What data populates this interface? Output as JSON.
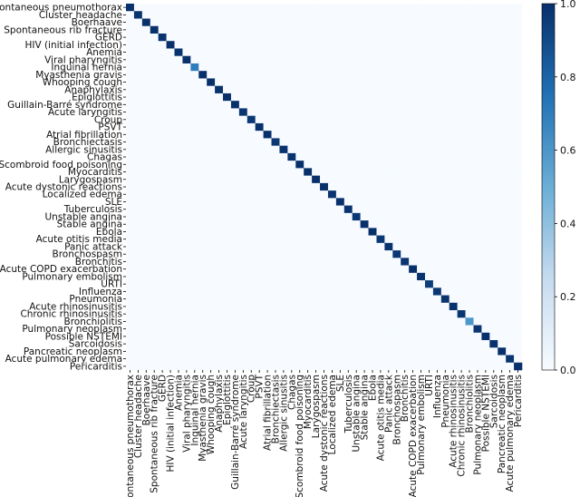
{
  "chart_data": {
    "type": "heatmap",
    "title": "",
    "xlabel": "",
    "ylabel": "",
    "categories": [
      "Spontaneous pneumothorax",
      "Cluster headache",
      "Boerhaave",
      "Spontaneous rib fracture",
      "GERD",
      "HIV (initial infection)",
      "Anemia",
      "Viral pharyngitis",
      "Inguinal hernia",
      "Myasthenia gravis",
      "Whooping cough",
      "Anaphylaxis",
      "Epiglottitis",
      "Guillain-Barré syndrome",
      "Acute laryngitis",
      "Croup",
      "PSVT",
      "Atrial fibrillation",
      "Bronchiectasis",
      "Allergic sinusitis",
      "Chagas",
      "Scombroid food poisoning",
      "Myocarditis",
      "Larygospasm",
      "Acute dystonic reactions",
      "Localized edema",
      "SLE",
      "Tuberculosis",
      "Unstable angina",
      "Stable angina",
      "Ebola",
      "Acute otitis media",
      "Panic attack",
      "Bronchospasm",
      "Bronchitis",
      "Acute COPD exacerbation",
      "Pulmonary embolism",
      "URTI",
      "Influenza",
      "Pneumonia",
      "Acute rhinosinusitis",
      "Chronic rhinosinusitis",
      "Bronchiolitis",
      "Pulmonary neoplasm",
      "Possible NSTEMI",
      "Sarcoidosis",
      "Pancreatic neoplasm",
      "Acute pulmonary edema",
      "Pericarditis"
    ],
    "diagonal": [
      1.0,
      0.99,
      1.0,
      1.0,
      0.99,
      1.0,
      0.99,
      1.0,
      0.7,
      1.0,
      1.0,
      0.99,
      1.0,
      1.0,
      0.98,
      0.97,
      1.0,
      1.0,
      0.97,
      0.99,
      0.99,
      1.0,
      1.0,
      1.0,
      1.0,
      0.98,
      1.0,
      0.99,
      0.97,
      1.0,
      1.0,
      0.97,
      0.99,
      0.97,
      0.98,
      1.0,
      0.99,
      0.95,
      0.97,
      0.98,
      0.99,
      0.98,
      0.6,
      0.98,
      1.0,
      0.99,
      1.0,
      0.98,
      1.0
    ],
    "off_diagonal": 0.0,
    "colorbar": {
      "min": 0.0,
      "max": 1.0,
      "ticks": [
        "0.0",
        "0.2",
        "0.4",
        "0.6",
        "0.8",
        "1.0"
      ]
    },
    "colormap": {
      "low": "#f7fbff",
      "mid": "#6baed6",
      "high": "#08306b"
    },
    "grid": false,
    "legend": "colorbar-right"
  }
}
